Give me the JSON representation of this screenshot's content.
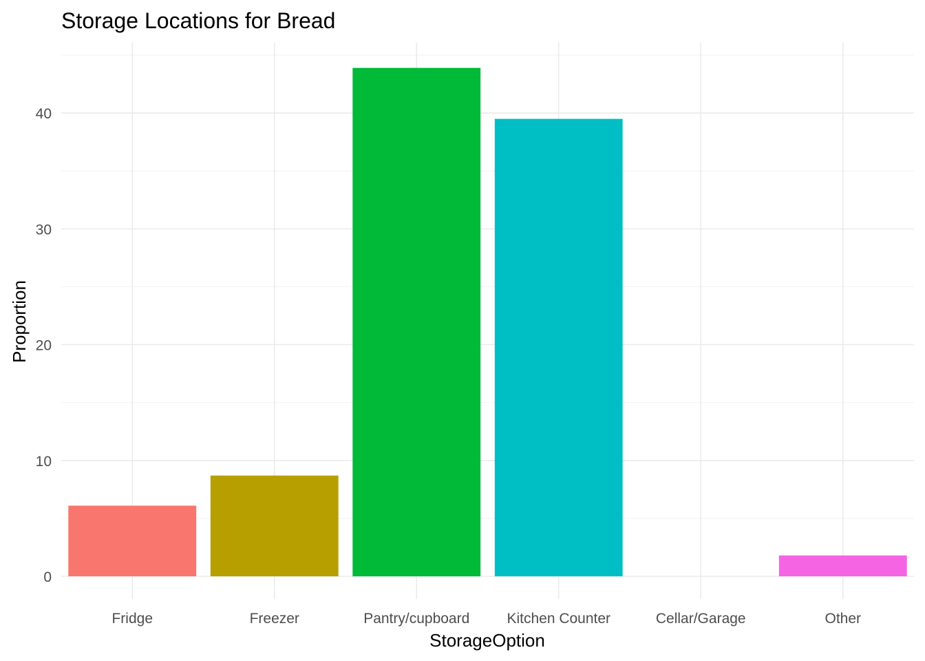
{
  "chart_data": {
    "type": "bar",
    "title": "Storage Locations for Bread",
    "xlabel": "StorageOption",
    "ylabel": "Proportion",
    "categories": [
      "Fridge",
      "Freezer",
      "Pantry/cupboard",
      "Kitchen Counter",
      "Cellar/Garage",
      "Other"
    ],
    "values": [
      6.1,
      8.7,
      43.9,
      39.5,
      0,
      1.8
    ],
    "colors": [
      "#F8766D",
      "#B79F00",
      "#00BA38",
      "#00BFC4",
      "#619CFF",
      "#F564E3"
    ],
    "ylim": [
      0,
      46
    ],
    "yticks": [
      0,
      10,
      20,
      30,
      40
    ],
    "grid": true,
    "legend": "none"
  }
}
